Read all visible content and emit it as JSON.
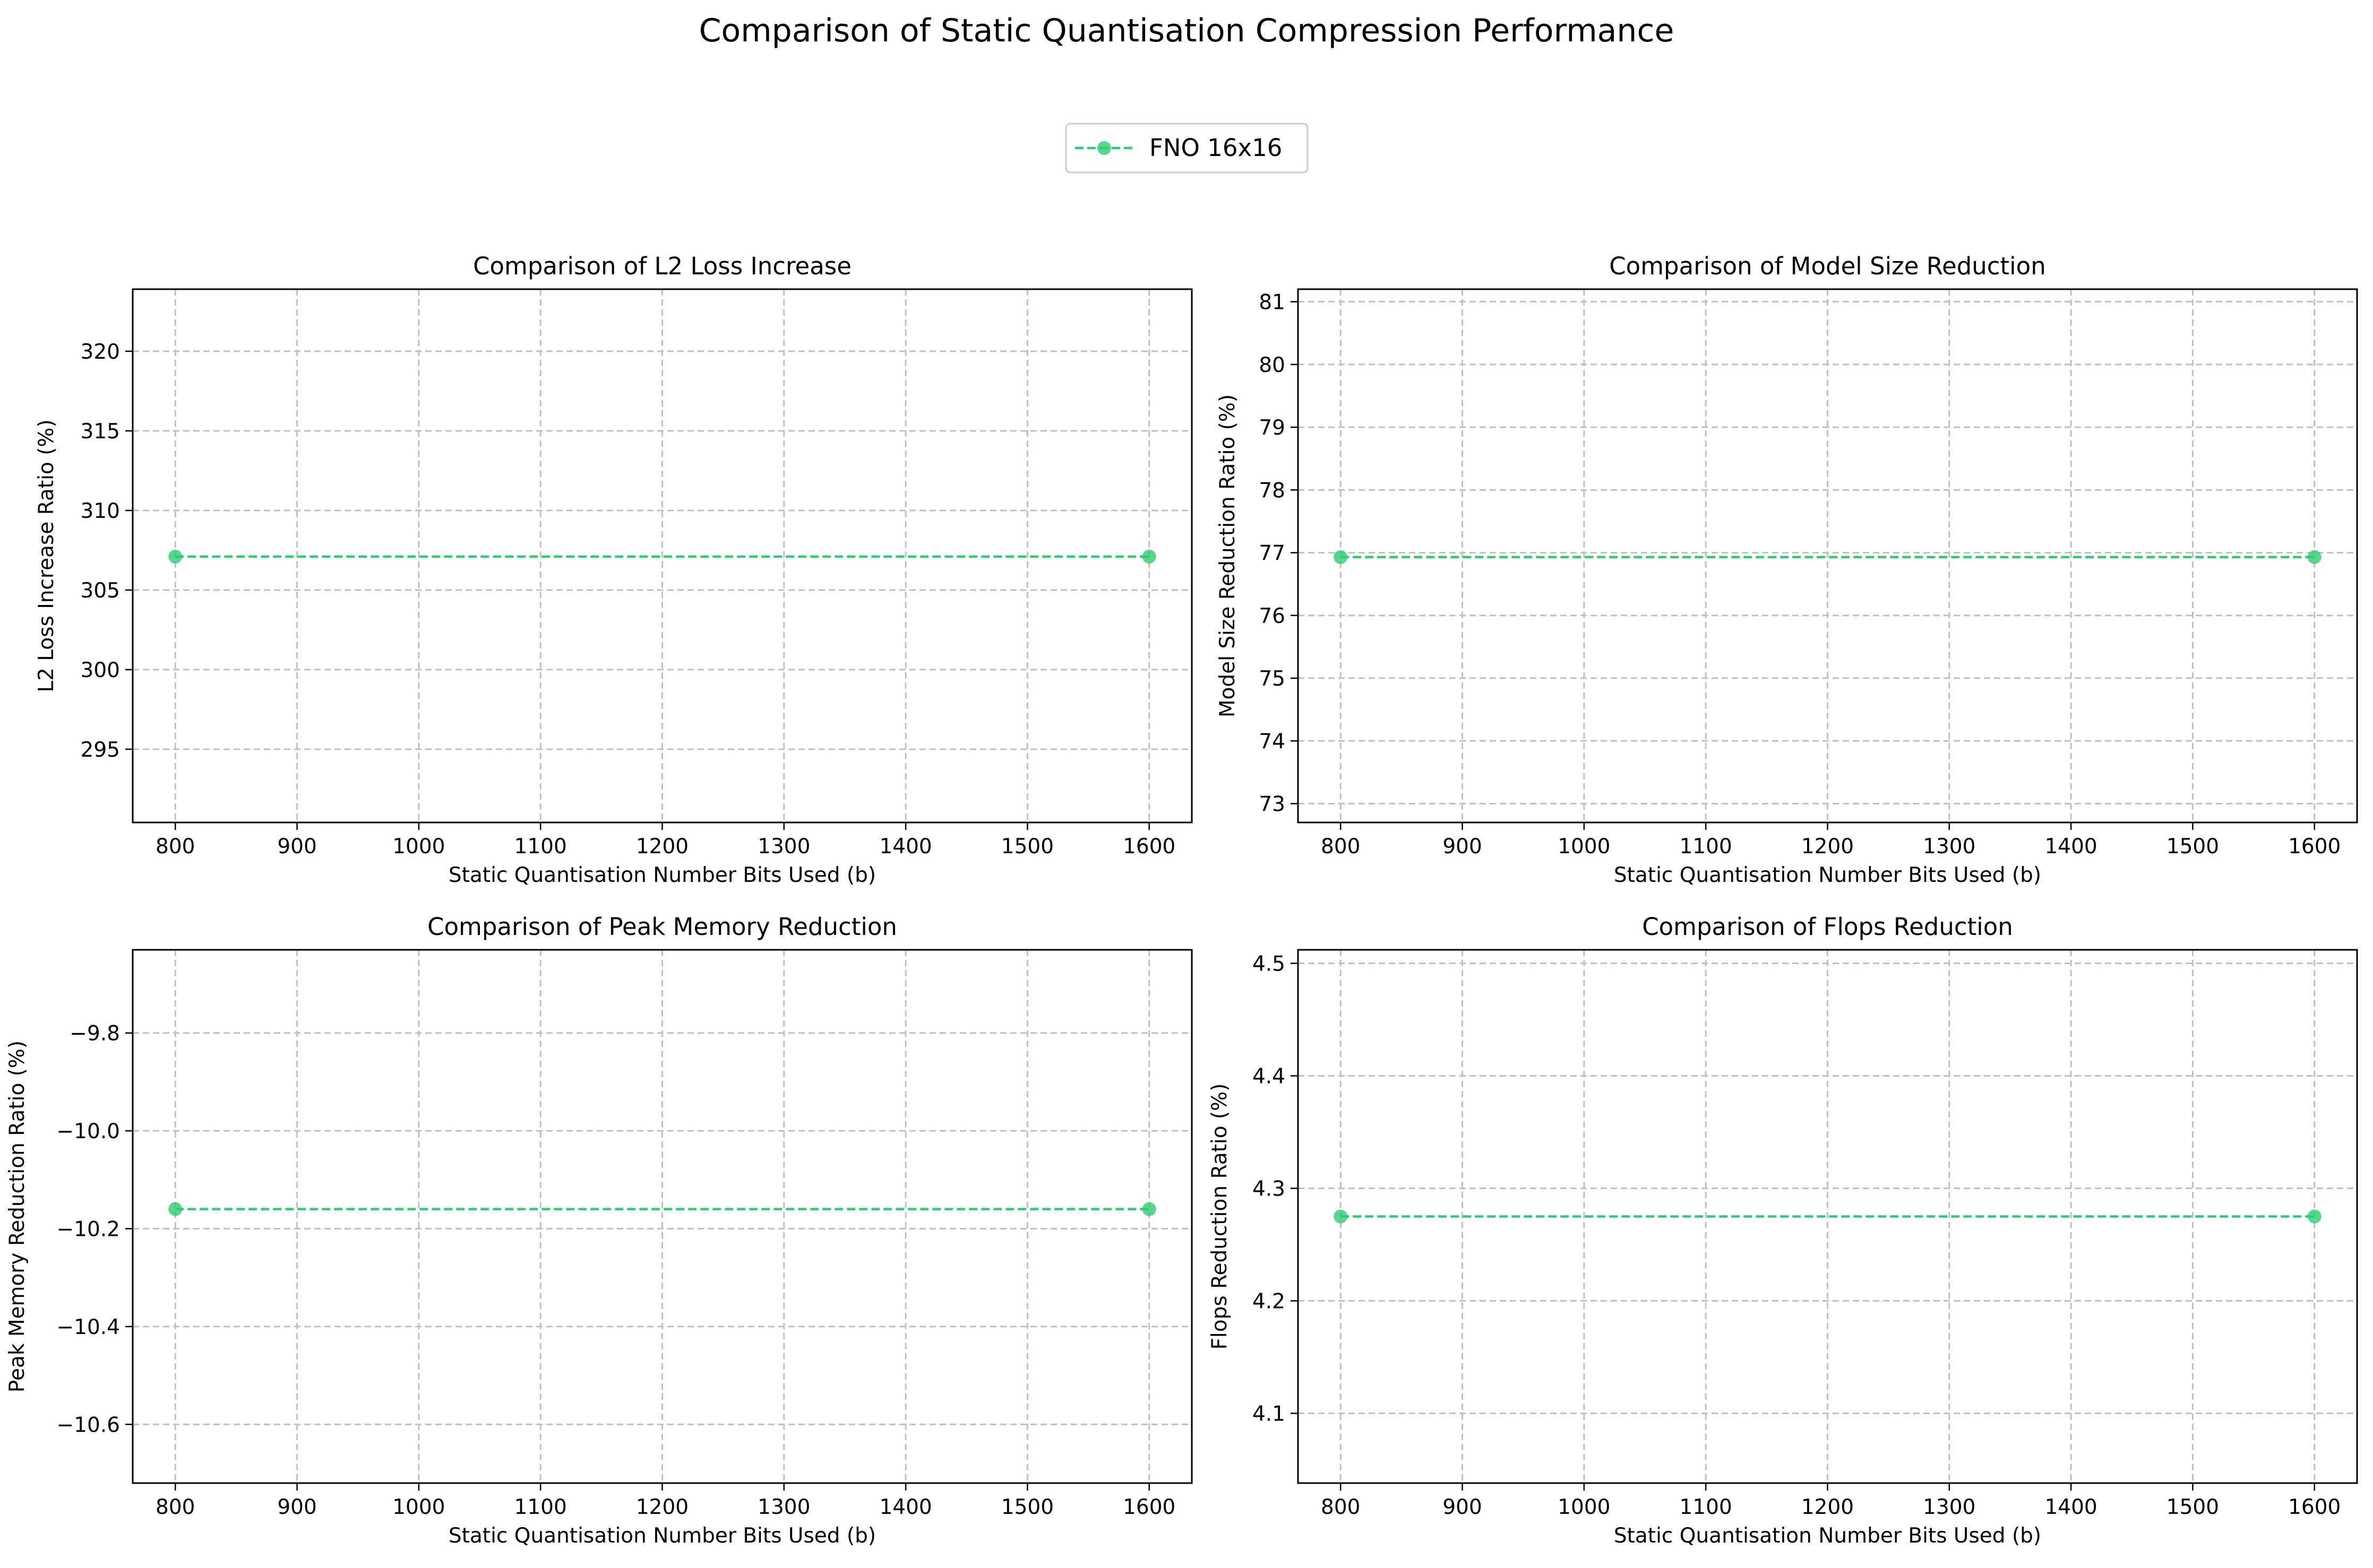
{
  "figure": {
    "title": "Comparison of Static Quantisation Compression Performance"
  },
  "legend": {
    "label": "FNO 16x16",
    "placement": "top-center"
  },
  "colors": {
    "series": "#2ecc71",
    "grid": "#c0c0c0",
    "axes": "#000000"
  },
  "chart_data": [
    {
      "type": "line",
      "title": "Comparison of L2 Loss Increase",
      "xlabel": "Static Quantisation Number Bits Used (b)",
      "ylabel": "L2 Loss Increase Ratio (%)",
      "xlim": [
        765,
        1635
      ],
      "ylim": [
        290.4,
        323.9
      ],
      "xticks": [
        800,
        900,
        1000,
        1100,
        1200,
        1300,
        1400,
        1500,
        1600
      ],
      "yticks": [
        295,
        300,
        305,
        310,
        315,
        320
      ],
      "ytick_labels": [
        "295",
        "300",
        "305",
        "310",
        "315",
        "320"
      ],
      "grid": true,
      "series": [
        {
          "name": "FNO 16x16",
          "x": [
            800,
            1600
          ],
          "y": [
            307.1,
            307.1
          ]
        }
      ]
    },
    {
      "type": "line",
      "title": "Comparison of Model Size Reduction",
      "xlabel": "Static Quantisation Number Bits Used (b)",
      "ylabel": "Model Size Reduction Ratio (%)",
      "xlim": [
        765,
        1635
      ],
      "ylim": [
        72.7,
        81.2
      ],
      "xticks": [
        800,
        900,
        1000,
        1100,
        1200,
        1300,
        1400,
        1500,
        1600
      ],
      "yticks": [
        73,
        74,
        75,
        76,
        77,
        78,
        79,
        80,
        81
      ],
      "ytick_labels": [
        "73",
        "74",
        "75",
        "76",
        "77",
        "78",
        "79",
        "80",
        "81"
      ],
      "grid": true,
      "series": [
        {
          "name": "FNO 16x16",
          "x": [
            800,
            1600
          ],
          "y": [
            76.93,
            76.93
          ]
        }
      ]
    },
    {
      "type": "line",
      "title": "Comparison of Peak Memory Reduction",
      "xlabel": "Static Quantisation Number Bits Used (b)",
      "ylabel": "Peak Memory Reduction Ratio (%)",
      "xlim": [
        765,
        1635
      ],
      "ylim": [
        -10.72,
        -9.63
      ],
      "xticks": [
        800,
        900,
        1000,
        1100,
        1200,
        1300,
        1400,
        1500,
        1600
      ],
      "yticks": [
        -10.6,
        -10.4,
        -10.2,
        -10.0,
        -9.8
      ],
      "ytick_labels": [
        "−10.6",
        "−10.4",
        "−10.2",
        "−10.0",
        "−9.8"
      ],
      "grid": true,
      "series": [
        {
          "name": "FNO 16x16",
          "x": [
            800,
            1600
          ],
          "y": [
            -10.16,
            -10.16
          ]
        }
      ]
    },
    {
      "type": "line",
      "title": "Comparison of Flops Reduction",
      "xlabel": "Static Quantisation Number Bits Used (b)",
      "ylabel": "Flops Reduction Ratio (%)",
      "xlim": [
        765,
        1635
      ],
      "ylim": [
        4.038,
        4.512
      ],
      "xticks": [
        800,
        900,
        1000,
        1100,
        1200,
        1300,
        1400,
        1500,
        1600
      ],
      "yticks": [
        4.1,
        4.2,
        4.3,
        4.4,
        4.5
      ],
      "ytick_labels": [
        "4.1",
        "4.2",
        "4.3",
        "4.4",
        "4.5"
      ],
      "grid": true,
      "series": [
        {
          "name": "FNO 16x16",
          "x": [
            800,
            1600
          ],
          "y": [
            4.275,
            4.275
          ]
        }
      ]
    }
  ]
}
